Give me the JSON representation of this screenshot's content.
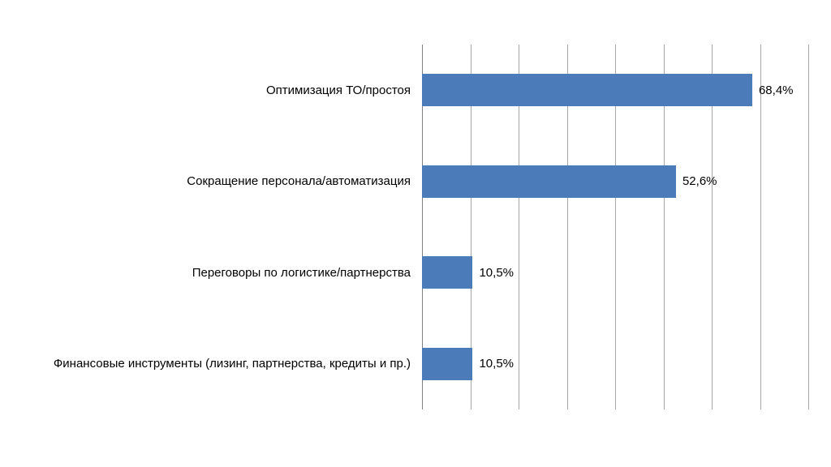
{
  "chart_data": {
    "type": "bar",
    "orientation": "horizontal",
    "title": "",
    "xlabel": "",
    "ylabel": "",
    "categories": [
      "Оптимизация ТО/простоя",
      "Сокращение персонала/автоматизация",
      "Переговоры по логистике/партнерства",
      "Финансовые инструменты (лизинг, партнерства, кредиты и пр.)"
    ],
    "values": [
      68.4,
      52.6,
      10.5,
      10.5
    ],
    "value_labels": [
      "68,4%",
      "52,6%",
      "10,5%",
      "10,5%"
    ],
    "xlim": [
      0,
      80
    ],
    "grid": true,
    "grid_step": 10,
    "legend": "none",
    "bar_color": "#4c7bba",
    "gridline_color": "#a6a6a6",
    "axis_color": "#7f7f7f",
    "background_color": "#ffffff"
  }
}
